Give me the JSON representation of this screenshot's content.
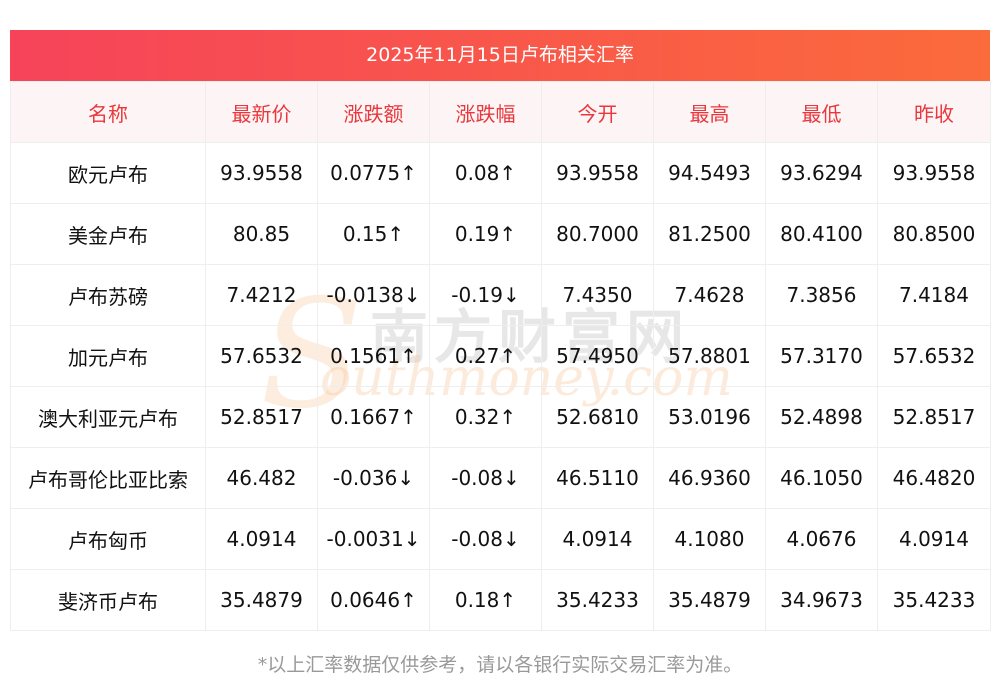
{
  "watermark": {
    "cn": "南方财富网",
    "en": "outhmoney.com",
    "s": "S"
  },
  "title": "2025年11月15日卢布相关汇率",
  "colors": {
    "up": "#e8241c",
    "down": "#1a8a22",
    "header_text": "#e8383d",
    "title_start": "#f6435a",
    "title_end": "#fb6b3b"
  },
  "table": {
    "headers": [
      "名称",
      "最新价",
      "涨跌额",
      "涨跌幅",
      "今开",
      "最高",
      "最低",
      "昨收"
    ],
    "rows": [
      {
        "dir": "up",
        "cells": [
          "欧元卢布",
          "93.9558",
          "0.0775↑",
          "0.08↑",
          "93.9558",
          "94.5493",
          "93.6294",
          "93.9558"
        ]
      },
      {
        "dir": "up",
        "cells": [
          "美金卢布",
          "80.85",
          "0.15↑",
          "0.19↑",
          "80.7000",
          "81.2500",
          "80.4100",
          "80.8500"
        ]
      },
      {
        "dir": "down",
        "cells": [
          "卢布苏磅",
          "7.4212",
          "-0.0138↓",
          "-0.19↓",
          "7.4350",
          "7.4628",
          "7.3856",
          "7.4184"
        ]
      },
      {
        "dir": "up",
        "cells": [
          "加元卢布",
          "57.6532",
          "0.1561↑",
          "0.27↑",
          "57.4950",
          "57.8801",
          "57.3170",
          "57.6532"
        ]
      },
      {
        "dir": "up",
        "cells": [
          "澳大利亚元卢布",
          "52.8517",
          "0.1667↑",
          "0.32↑",
          "52.6810",
          "53.0196",
          "52.4898",
          "52.8517"
        ]
      },
      {
        "dir": "down",
        "cells": [
          "卢布哥伦比亚比索",
          "46.482",
          "-0.036↓",
          "-0.08↓",
          "46.5110",
          "46.9360",
          "46.1050",
          "46.4820"
        ]
      },
      {
        "dir": "down",
        "cells": [
          "卢布匈币",
          "4.0914",
          "-0.0031↓",
          "-0.08↓",
          "4.0914",
          "4.1080",
          "4.0676",
          "4.0914"
        ]
      },
      {
        "dir": "up",
        "cells": [
          "斐济币卢布",
          "35.4879",
          "0.0646↑",
          "0.18↑",
          "35.4233",
          "35.4879",
          "34.9673",
          "35.4233"
        ]
      }
    ]
  },
  "footnote": "*以上汇率数据仅供参考，请以各银行实际交易汇率为准。"
}
